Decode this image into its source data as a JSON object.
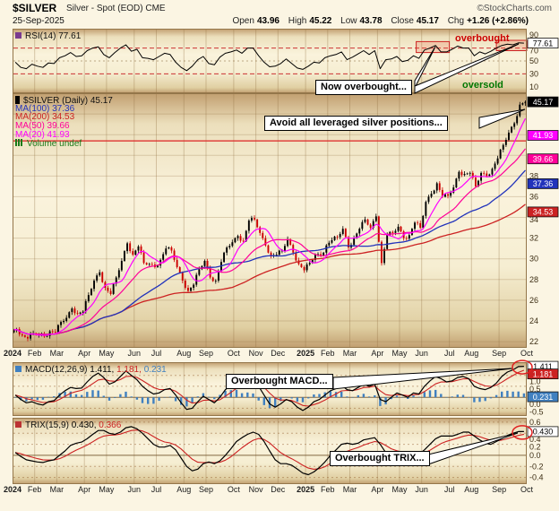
{
  "header": {
    "symbol": "$SILVER",
    "description": "Silver - Spot (EOD) CME",
    "source": "©StockCharts.com",
    "date": "25-Sep-2025",
    "quote": {
      "open_label": "Open",
      "open": "43.96",
      "high_label": "High",
      "high": "45.22",
      "low_label": "Low",
      "low": "43.78",
      "close_label": "Close",
      "close": "45.17",
      "chg_label": "Chg",
      "chg": "+1.26 (+2.86%)"
    }
  },
  "rsi_panel": {
    "legend": "RSI(14) 77.61",
    "overbought_label": "overbought",
    "oversold_label": "oversold",
    "ticks": [
      90,
      70,
      50,
      30,
      10
    ],
    "value_box": {
      "text": "77.61",
      "value": 77.61,
      "bg": "#ffffff",
      "fg": "#000000"
    }
  },
  "price_panel": {
    "legend_symbol": "$SILVER (Daily) 45.17",
    "legend_ma100": "MA(100) 37.36",
    "legend_ma200": "MA(200) 34.53",
    "legend_ma50": "MA(50) 39.66",
    "legend_ma20": "MA(20) 41.93",
    "legend_volume": "Volume undef",
    "ticks": [
      38,
      36,
      34,
      32,
      30,
      28,
      26,
      24,
      22
    ],
    "value_boxes": [
      {
        "text": "45.17",
        "value": 45.17,
        "bg": "#000000",
        "fg": "#ffffff"
      },
      {
        "text": "41.93",
        "value": 41.93,
        "bg": "#ff00ff",
        "fg": "#ffffff"
      },
      {
        "text": "39.66",
        "value": 39.66,
        "bg": "#ff0099",
        "fg": "#ffffff"
      },
      {
        "text": "37.36",
        "value": 37.36,
        "bg": "#2233bb",
        "fg": "#ffffff"
      },
      {
        "text": "34.53",
        "value": 34.53,
        "bg": "#cc2222",
        "fg": "#ffffff"
      }
    ]
  },
  "macd_panel": {
    "legend_name": "MACD(12,26,9)",
    "legend_v1": "1.411,",
    "legend_v2": "1.181,",
    "legend_v3": "0.231",
    "ticks": [
      {
        "text": "1.0",
        "value": 1.0
      },
      {
        "text": "0.5",
        "value": 0.5
      },
      {
        "text": "0.0",
        "value": 0.0
      },
      {
        "text": "-0.5",
        "value": -0.5
      }
    ],
    "value_boxes": [
      {
        "text": "1.411",
        "value": 1.411,
        "bg": "#ffffff",
        "fg": "#000000"
      },
      {
        "text": "1.181",
        "value": 1.181,
        "bg": "#cc2222",
        "fg": "#ffffff"
      },
      {
        "text": "0.231",
        "value": 0.231,
        "bg": "#4080c0",
        "fg": "#ffffff"
      }
    ]
  },
  "trix_panel": {
    "legend_name": "TRIX(15,9)",
    "legend_v1": "0.430,",
    "legend_v2": "0.366",
    "ticks": [
      {
        "text": "0.6",
        "value": 0.6
      },
      {
        "text": "0.4",
        "value": 0.4
      },
      {
        "text": "0.2",
        "value": 0.2
      },
      {
        "text": "0.0",
        "value": 0.0
      },
      {
        "text": "-0.2",
        "value": -0.2
      },
      {
        "text": "-0.4",
        "value": -0.4
      }
    ],
    "value_boxes": [
      {
        "text": "0.430",
        "value": 0.43,
        "bg": "#ffffff",
        "fg": "#000000"
      }
    ]
  },
  "annotations": {
    "now_overbought": "Now overbought...",
    "avoid": "Avoid all leveraged silver positions...",
    "macd": "Overbought MACD...",
    "trix": "Overbought TRIX..."
  },
  "colors": {
    "up_candle": "#000000",
    "down_candle": "#cc0000",
    "ma20": "#ff00ff",
    "ma50": "#ff0099",
    "ma100": "#2233bb",
    "ma200": "#cc2222",
    "rsi_line": "#000000",
    "macd_line": "#000000",
    "macd_signal": "#cc2222",
    "macd_histogram": "#4080c0",
    "trix_line": "#000000",
    "trix_signal": "#cc2222",
    "overbought_text": "#cc0000",
    "oversold_text": "#007700",
    "rsi_marker": "#7a3b8f",
    "price_marker": "#000000",
    "volume_text": "#1a7a1a",
    "macd_marker": "#4080c0",
    "trix_marker": "#bb3333",
    "resistance_line": "#dd2222"
  },
  "chart_data": {
    "type": "candlestick_multi_panel",
    "title": "$SILVER Silver - Spot (EOD) CME",
    "x_unit": "weekly",
    "x_labels": [
      "2024",
      "Feb",
      "Mar",
      "Apr",
      "May",
      "Jun",
      "Jul",
      "Aug",
      "Sep",
      "Oct",
      "Nov",
      "Dec",
      "2025",
      "Feb",
      "Mar",
      "Apr",
      "May",
      "Jun",
      "Jul",
      "Aug",
      "Sep",
      "Oct"
    ],
    "x_label_week_index": [
      0,
      4,
      8,
      13,
      17,
      22,
      26,
      31,
      35,
      40,
      44,
      48,
      53,
      57,
      61,
      66,
      70,
      74,
      79,
      83,
      88,
      93
    ],
    "price": {
      "type": "candlestick",
      "ylim": [
        21.4,
        46.0
      ],
      "last": {
        "open": 43.96,
        "high": 45.22,
        "low": 43.78,
        "close": 45.17,
        "chg": 1.26,
        "chg_pct": 2.86
      },
      "ma_last": {
        "ma20": 41.93,
        "ma50": 39.66,
        "ma100": 37.36,
        "ma200": 34.53
      },
      "resistance_line": 41.4,
      "weekly_closes": [
        23.2,
        22.6,
        22.3,
        22.8,
        22.7,
        22.5,
        23.0,
        22.9,
        23.9,
        24.3,
        25.2,
        24.7,
        24.9,
        26.5,
        27.9,
        28.7,
        27.2,
        26.6,
        28.2,
        29.8,
        31.5,
        30.4,
        31.2,
        29.6,
        29.5,
        29.2,
        29.9,
        31.0,
        30.8,
        29.2,
        27.9,
        26.9,
        27.5,
        29.0,
        29.8,
        28.2,
        27.9,
        29.7,
        31.1,
        31.6,
        32.2,
        31.7,
        33.7,
        33.8,
        32.5,
        31.3,
        30.3,
        30.4,
        30.8,
        31.9,
        30.6,
        29.5,
        28.9,
        29.6,
        30.4,
        30.3,
        31.3,
        31.8,
        32.1,
        32.9,
        31.1,
        32.0,
        32.9,
        33.8,
        33.0,
        34.1,
        29.6,
        32.3,
        32.5,
        33.1,
        32.0,
        32.3,
        33.5,
        33.0,
        35.5,
        36.3,
        37.3,
        36.0,
        36.1,
        36.9,
        38.4,
        38.2,
        38.3,
        37.0,
        38.3,
        38.0,
        38.7,
        39.7,
        41.0,
        42.2,
        43.1,
        44.9,
        45.17
      ]
    },
    "rsi": {
      "type": "line",
      "period": 14,
      "last": 77.61,
      "ylim": [
        0,
        100
      ],
      "overbought_level": 70,
      "oversold_level": 30,
      "values": [
        48,
        40,
        38,
        45,
        42,
        40,
        47,
        46,
        55,
        58,
        63,
        57,
        58,
        66,
        70,
        72,
        60,
        55,
        63,
        70,
        75,
        65,
        68,
        55,
        54,
        52,
        57,
        62,
        60,
        48,
        40,
        35,
        42,
        52,
        57,
        46,
        44,
        56,
        62,
        64,
        67,
        62,
        70,
        70,
        58,
        48,
        41,
        42,
        46,
        53,
        46,
        39,
        37,
        42,
        48,
        47,
        55,
        58,
        60,
        64,
        52,
        56,
        61,
        66,
        60,
        66,
        38,
        52,
        53,
        57,
        49,
        51,
        58,
        54,
        67,
        70,
        74,
        64,
        64,
        68,
        73,
        70,
        70,
        58,
        64,
        61,
        65,
        70,
        74,
        76,
        75,
        78,
        77.61
      ],
      "highlight_boxes": [
        {
          "week_start": 73,
          "week_end": 79,
          "v_low": 63,
          "v_high": 80
        },
        {
          "week_start": 87.5,
          "week_end": 93,
          "v_low": 66,
          "v_high": 82
        }
      ]
    },
    "macd": {
      "type": "line+histogram",
      "params": "12,26,9",
      "last": [
        1.411,
        1.181,
        0.231
      ],
      "ylim": [
        -0.85,
        1.6
      ],
      "values": [
        0.1,
        -0.1,
        -0.25,
        -0.2,
        -0.3,
        -0.35,
        -0.2,
        -0.15,
        0.1,
        0.3,
        0.45,
        0.4,
        0.42,
        0.7,
        0.95,
        1.1,
        0.9,
        0.6,
        0.7,
        0.95,
        1.2,
        1.0,
        0.8,
        0.5,
        0.3,
        0.15,
        0.2,
        0.35,
        0.4,
        0.1,
        -0.25,
        -0.55,
        -0.5,
        -0.2,
        0.05,
        -0.1,
        -0.25,
        0.0,
        0.35,
        0.55,
        0.75,
        0.7,
        0.85,
        0.9,
        0.5,
        0.1,
        -0.3,
        -0.45,
        -0.3,
        -0.1,
        -0.2,
        -0.45,
        -0.6,
        -0.45,
        -0.2,
        -0.1,
        0.1,
        0.3,
        0.4,
        0.55,
        0.35,
        0.3,
        0.45,
        0.6,
        0.5,
        0.6,
        -0.1,
        -0.2,
        0.0,
        0.2,
        0.1,
        0.0,
        0.2,
        0.15,
        0.5,
        0.75,
        0.95,
        0.85,
        0.7,
        0.75,
        0.9,
        0.95,
        0.85,
        0.5,
        0.4,
        0.35,
        0.45,
        0.65,
        0.95,
        1.15,
        1.25,
        1.4,
        1.411
      ]
    },
    "trix": {
      "type": "line",
      "params": "15,9",
      "last": [
        0.43,
        0.366
      ],
      "ylim": [
        -0.52,
        0.68
      ],
      "values": [
        0.05,
        -0.02,
        -0.08,
        -0.1,
        -0.12,
        -0.13,
        -0.1,
        -0.08,
        0.0,
        0.08,
        0.18,
        0.22,
        0.24,
        0.3,
        0.38,
        0.45,
        0.45,
        0.4,
        0.38,
        0.42,
        0.5,
        0.52,
        0.48,
        0.4,
        0.3,
        0.2,
        0.15,
        0.15,
        0.18,
        0.1,
        -0.05,
        -0.2,
        -0.28,
        -0.25,
        -0.15,
        -0.12,
        -0.15,
        -0.1,
        0.0,
        0.12,
        0.25,
        0.32,
        0.38,
        0.42,
        0.38,
        0.25,
        0.08,
        -0.08,
        -0.15,
        -0.15,
        -0.18,
        -0.25,
        -0.32,
        -0.35,
        -0.3,
        -0.22,
        -0.12,
        0.0,
        0.1,
        0.2,
        0.22,
        0.2,
        0.22,
        0.28,
        0.3,
        0.32,
        0.2,
        0.05,
        -0.02,
        0.0,
        0.0,
        -0.02,
        0.0,
        0.02,
        0.1,
        0.2,
        0.3,
        0.35,
        0.35,
        0.35,
        0.38,
        0.42,
        0.42,
        0.35,
        0.28,
        0.22,
        0.2,
        0.25,
        0.3,
        0.36,
        0.4,
        0.43,
        0.43
      ]
    }
  }
}
